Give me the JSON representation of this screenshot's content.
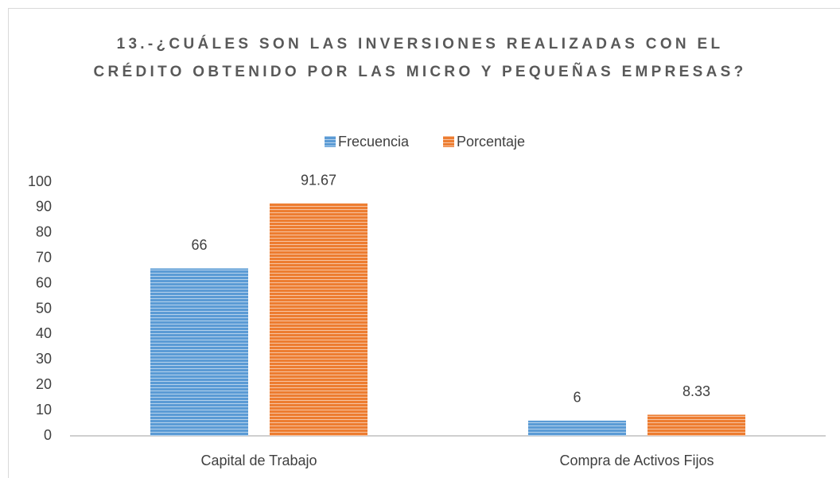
{
  "chart_data": {
    "type": "bar",
    "title": "13.-¿CUÁLES SON LAS INVERSIONES REALIZADAS CON EL CRÉDITO OBTENIDO POR LAS MICRO Y PEQUEÑAS EMPRESAS?",
    "categories": [
      "Capital de Trabajo",
      "Compra de Activos Fijos"
    ],
    "series": [
      {
        "name": "Frecuencia",
        "color": "#5b9bd5",
        "values": [
          66,
          6
        ]
      },
      {
        "name": "Porcentaje",
        "color": "#ed7d31",
        "values": [
          91.67,
          8.33
        ]
      }
    ],
    "ylim": [
      0,
      100
    ],
    "yticks": [
      0,
      10,
      20,
      30,
      40,
      50,
      60,
      70,
      80,
      90,
      100
    ],
    "grid": false,
    "legend": "top"
  }
}
